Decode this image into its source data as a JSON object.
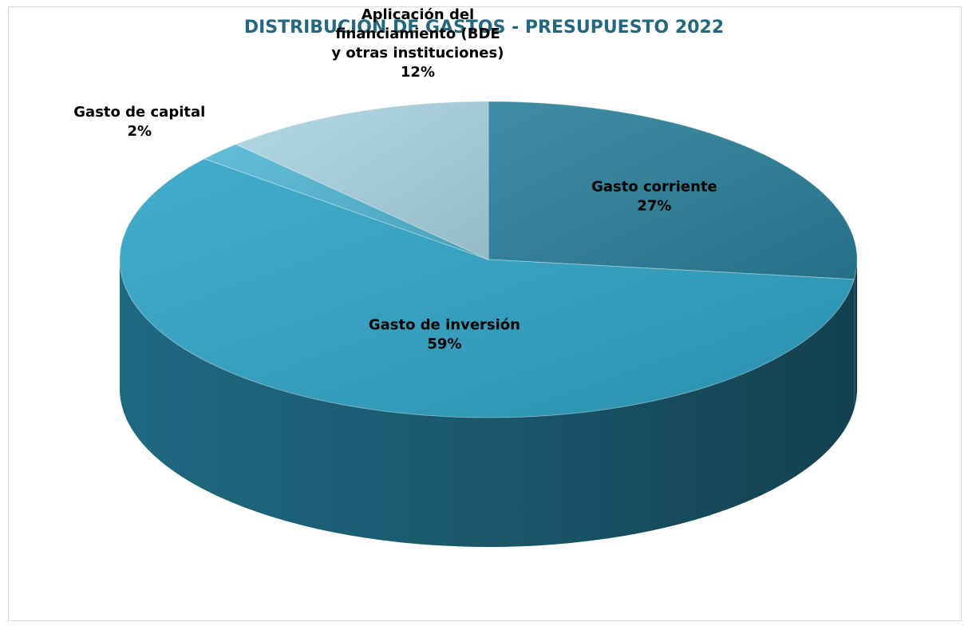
{
  "chart_data": {
    "type": "pie",
    "title": "DISTRIBUCIÓN DE GASTOS - PRESUPUESTO 2022",
    "slices": [
      {
        "label_lines": [
          "Gasto corriente"
        ],
        "percent_label": "27%",
        "value": 27,
        "color": "#2a7f9a"
      },
      {
        "label_lines": [
          "Gasto de inversión"
        ],
        "percent_label": "59%",
        "value": 59,
        "color": "#2fa3c6"
      },
      {
        "label_lines": [
          "Gasto de capital"
        ],
        "percent_label": "2%",
        "value": 2,
        "color": "#52b6d3"
      },
      {
        "label_lines": [
          "Aplicación del",
          "financiamiento  (BDE",
          "y otras instituciones)"
        ],
        "percent_label": "12%",
        "value": 12,
        "color": "#a9d3e2"
      }
    ],
    "legend": "none",
    "style": "3d"
  }
}
